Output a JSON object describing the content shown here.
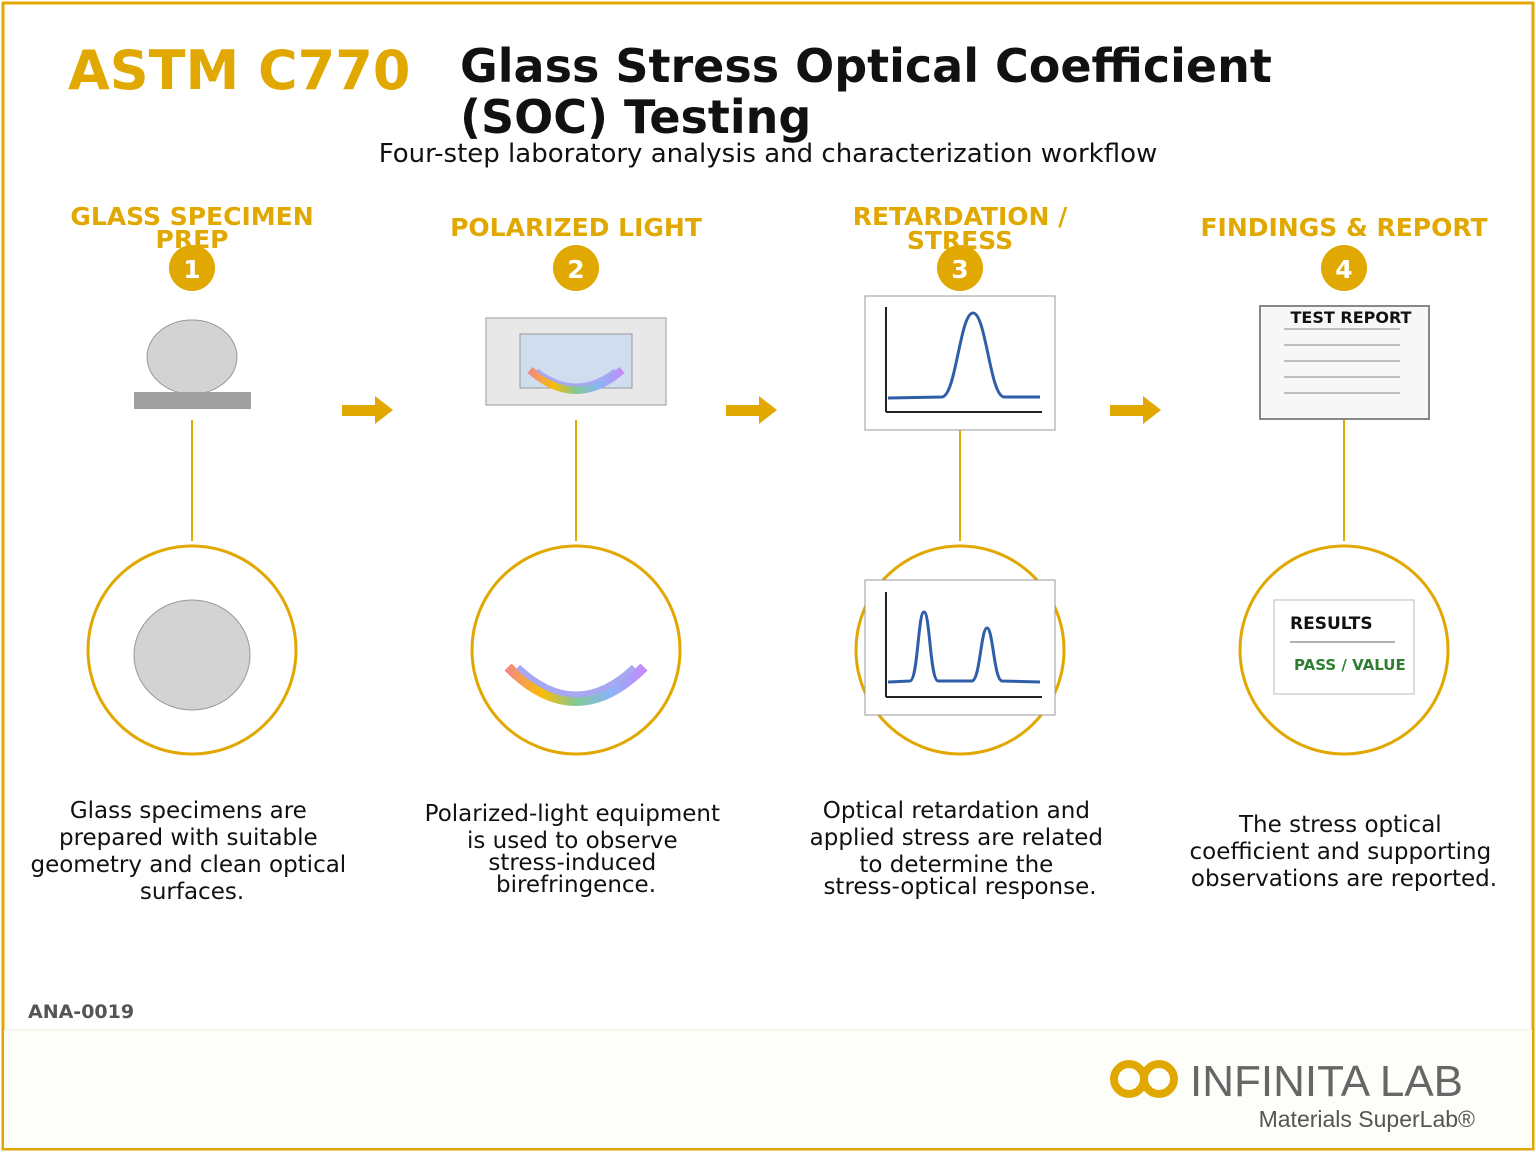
{
  "header": {
    "code": "ASTM C770",
    "title_line1": "Glass Stress Optical Coefficient",
    "title_line2": "(SOC) Testing",
    "subtitle": "Four-step laboratory analysis and characterization workflow"
  },
  "colors": {
    "accent": "#E0A800",
    "dark": "#111111",
    "curve": "#2F5EA8",
    "pass": "#2E7D32",
    "grey_text": "#555555"
  },
  "steps": [
    {
      "number": "1",
      "title_line1": "GLASS SPECIMEN",
      "title_line2": "PREP",
      "desc": [
        "Glass specimens are",
        "prepared with suitable",
        "geometry and clean optical",
        "surfaces."
      ]
    },
    {
      "number": "2",
      "title_line1": "POLARIZED LIGHT",
      "title_line2": "",
      "desc": [
        "Polarized-light equipment",
        "is used to observe",
        "stress-induced",
        "birefringence."
      ]
    },
    {
      "number": "3",
      "title_line1": "RETARDATION /",
      "title_line2": "STRESS",
      "desc": [
        "Optical retardation and",
        "applied stress are related",
        "to determine the",
        "stress-optical response."
      ]
    },
    {
      "number": "4",
      "title_line1": "FINDINGS & REPORT",
      "title_line2": "",
      "desc": [
        "The stress optical",
        "coefficient and supporting",
        "observations are reported."
      ]
    }
  ],
  "report_doc": {
    "title": "TEST REPORT"
  },
  "results_card": {
    "title": "RESULTS",
    "value": "PASS / VALUE"
  },
  "footer": {
    "doc_id": "ANA-0019",
    "brand": "INFINITA LAB",
    "tagline": "Materials SuperLab®"
  }
}
